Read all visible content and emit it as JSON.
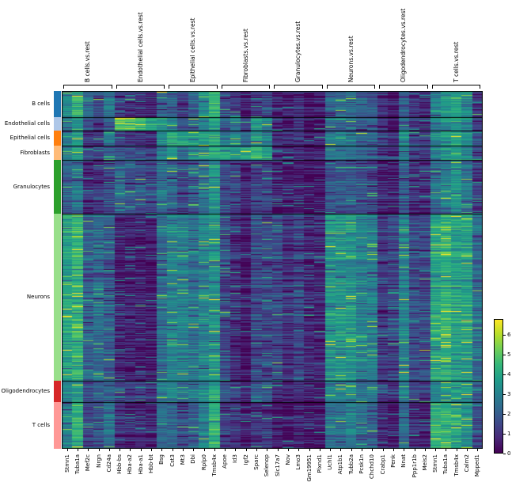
{
  "chart_data": {
    "type": "heatmap",
    "colormap": "viridis",
    "viridis_stops": [
      "#440154",
      "#482878",
      "#3e4989",
      "#31688e",
      "#26828e",
      "#1f9e89",
      "#35b779",
      "#6ece58",
      "#b5de2b",
      "#fde725"
    ],
    "color_scale": {
      "vmin": 0,
      "vmax": 6.8,
      "ticks": [
        0,
        1,
        2,
        3,
        4,
        5,
        6
      ]
    },
    "genes_per_column_group": 5,
    "column_groups": [
      "B cells.vs.rest",
      "Endothelial cells.vs.rest",
      "Epithelial cells.vs.rest",
      "Fibroblasts.vs.rest",
      "Granulocytes.vs.rest",
      "Neurons.vs.rest",
      "Oligodendrocytes.vs.rest",
      "T cells.vs.rest"
    ],
    "genes": [
      "Stmn1",
      "Tuba1a",
      "Mef2c",
      "Nrgn",
      "Cd24a",
      "Hbb-bs",
      "Hba-a2",
      "Hba-a1",
      "Hbb-bt",
      "Bsg",
      "Cst3",
      "Mt3",
      "Dbi",
      "Rplp0",
      "Tmsb4x",
      "Apoe",
      "Id3",
      "Igf2",
      "Sparc",
      "Selenop",
      "Slc17a7",
      "Nov",
      "Lmo3",
      "Gm19951",
      "Plxnd1",
      "Uchl1",
      "Atp1b1",
      "Tubb2a",
      "Pcsk1n",
      "Chchd10",
      "Crabp1",
      "Penk",
      "Nnat",
      "Ppp1r1b",
      "Meis2",
      "Stmn1",
      "Tuba1a",
      "Tmsb4x",
      "Calm2",
      "Mpped1"
    ],
    "row_groups": [
      {
        "label": "B cells",
        "color": "#1f77b4",
        "n_rows": 33,
        "mean_expression": [
          3.2,
          4.4,
          2.4,
          1.6,
          2.6,
          1.0,
          0.8,
          0.8,
          0.6,
          2.2,
          2.2,
          1.2,
          2.2,
          3.4,
          4.4,
          1.4,
          1.2,
          0.5,
          1.0,
          1.4,
          0.6,
          0.5,
          0.8,
          0.4,
          0.5,
          2.2,
          2.2,
          2.4,
          2.0,
          1.8,
          0.8,
          0.5,
          2.0,
          1.0,
          0.8,
          3.0,
          3.6,
          3.8,
          3.0,
          1.2
        ]
      },
      {
        "label": "Endothelial cells",
        "color": "#aec7e8",
        "n_rows": 17,
        "mean_expression": [
          2.6,
          3.2,
          1.6,
          1.4,
          2.0,
          5.2,
          5.0,
          4.9,
          4.4,
          3.9,
          3.0,
          2.0,
          2.6,
          3.0,
          4.0,
          2.2,
          2.8,
          1.4,
          3.4,
          3.0,
          0.8,
          0.6,
          1.0,
          0.5,
          0.6,
          2.4,
          2.6,
          2.4,
          2.0,
          1.8,
          1.0,
          0.6,
          2.4,
          1.2,
          1.0,
          2.8,
          3.2,
          3.6,
          3.0,
          1.4
        ]
      },
      {
        "label": "Epithelial cells",
        "color": "#ff7f0e",
        "n_rows": 19,
        "mean_expression": [
          3.0,
          3.9,
          1.2,
          1.4,
          2.8,
          1.4,
          1.2,
          1.2,
          1.0,
          3.2,
          4.3,
          3.8,
          3.6,
          3.8,
          4.3,
          2.8,
          3.4,
          2.2,
          3.4,
          2.8,
          0.8,
          0.8,
          1.0,
          0.6,
          0.8,
          2.8,
          3.0,
          2.8,
          2.4,
          2.2,
          1.4,
          0.8,
          3.2,
          1.6,
          1.4,
          3.2,
          3.8,
          4.0,
          3.4,
          1.8
        ]
      },
      {
        "label": "Fibroblasts",
        "color": "#ffbb78",
        "n_rows": 18,
        "mean_expression": [
          2.6,
          3.4,
          1.4,
          1.4,
          2.0,
          1.8,
          1.6,
          1.6,
          1.2,
          3.0,
          3.6,
          2.4,
          3.0,
          3.2,
          4.0,
          3.8,
          3.4,
          3.8,
          4.4,
          3.8,
          0.7,
          0.7,
          0.9,
          0.5,
          0.6,
          2.4,
          2.6,
          2.4,
          2.0,
          1.8,
          1.2,
          0.7,
          2.8,
          1.3,
          1.1,
          2.8,
          3.4,
          3.6,
          3.0,
          1.4
        ]
      },
      {
        "label": "Granulocytes",
        "color": "#2ca02c",
        "n_rows": 68,
        "mean_expression": [
          2.0,
          2.4,
          0.9,
          1.0,
          1.4,
          2.2,
          1.9,
          1.9,
          1.5,
          2.5,
          2.1,
          1.4,
          2.0,
          2.5,
          3.4,
          1.5,
          1.4,
          0.7,
          1.4,
          1.4,
          0.5,
          0.4,
          0.6,
          0.4,
          0.4,
          1.9,
          2.0,
          1.9,
          1.5,
          1.4,
          0.7,
          0.4,
          1.9,
          0.8,
          0.7,
          2.4,
          2.9,
          3.3,
          2.4,
          1.0
        ]
      },
      {
        "label": "Neurons",
        "color": "#98df8a",
        "n_rows": 211,
        "mean_expression": [
          3.9,
          4.4,
          2.0,
          2.4,
          2.0,
          0.6,
          0.5,
          0.5,
          0.4,
          2.4,
          3.0,
          3.0,
          2.6,
          3.0,
          3.4,
          1.5,
          0.9,
          0.4,
          1.5,
          1.5,
          1.6,
          0.9,
          1.5,
          0.8,
          0.8,
          3.5,
          3.6,
          3.5,
          3.0,
          2.9,
          1.2,
          1.4,
          3.0,
          1.6,
          1.5,
          4.0,
          4.4,
          3.9,
          3.9,
          2.4
        ]
      },
      {
        "label": "Oligodendrocytes",
        "color": "#d62728",
        "n_rows": 27,
        "mean_expression": [
          3.0,
          3.5,
          1.5,
          1.8,
          2.0,
          1.4,
          1.2,
          1.2,
          1.0,
          2.6,
          3.0,
          2.2,
          2.6,
          3.0,
          3.9,
          1.8,
          1.5,
          0.7,
          1.8,
          1.8,
          0.7,
          0.6,
          0.8,
          0.5,
          0.6,
          3.0,
          3.0,
          3.0,
          2.5,
          2.5,
          1.4,
          0.9,
          2.9,
          1.4,
          1.1,
          3.0,
          3.5,
          3.6,
          3.4,
          1.9
        ]
      },
      {
        "label": "T cells",
        "color": "#ff9896",
        "n_rows": 59,
        "mean_expression": [
          3.0,
          4.3,
          1.4,
          1.8,
          2.4,
          0.9,
          0.7,
          0.7,
          0.6,
          2.4,
          2.1,
          1.5,
          2.0,
          3.0,
          4.3,
          1.1,
          1.0,
          0.5,
          1.1,
          1.1,
          0.5,
          0.4,
          0.6,
          0.4,
          0.4,
          2.6,
          2.5,
          2.8,
          2.4,
          2.0,
          0.8,
          0.5,
          2.4,
          1.0,
          0.8,
          4.3,
          4.4,
          4.0,
          3.5,
          1.5
        ]
      }
    ]
  }
}
